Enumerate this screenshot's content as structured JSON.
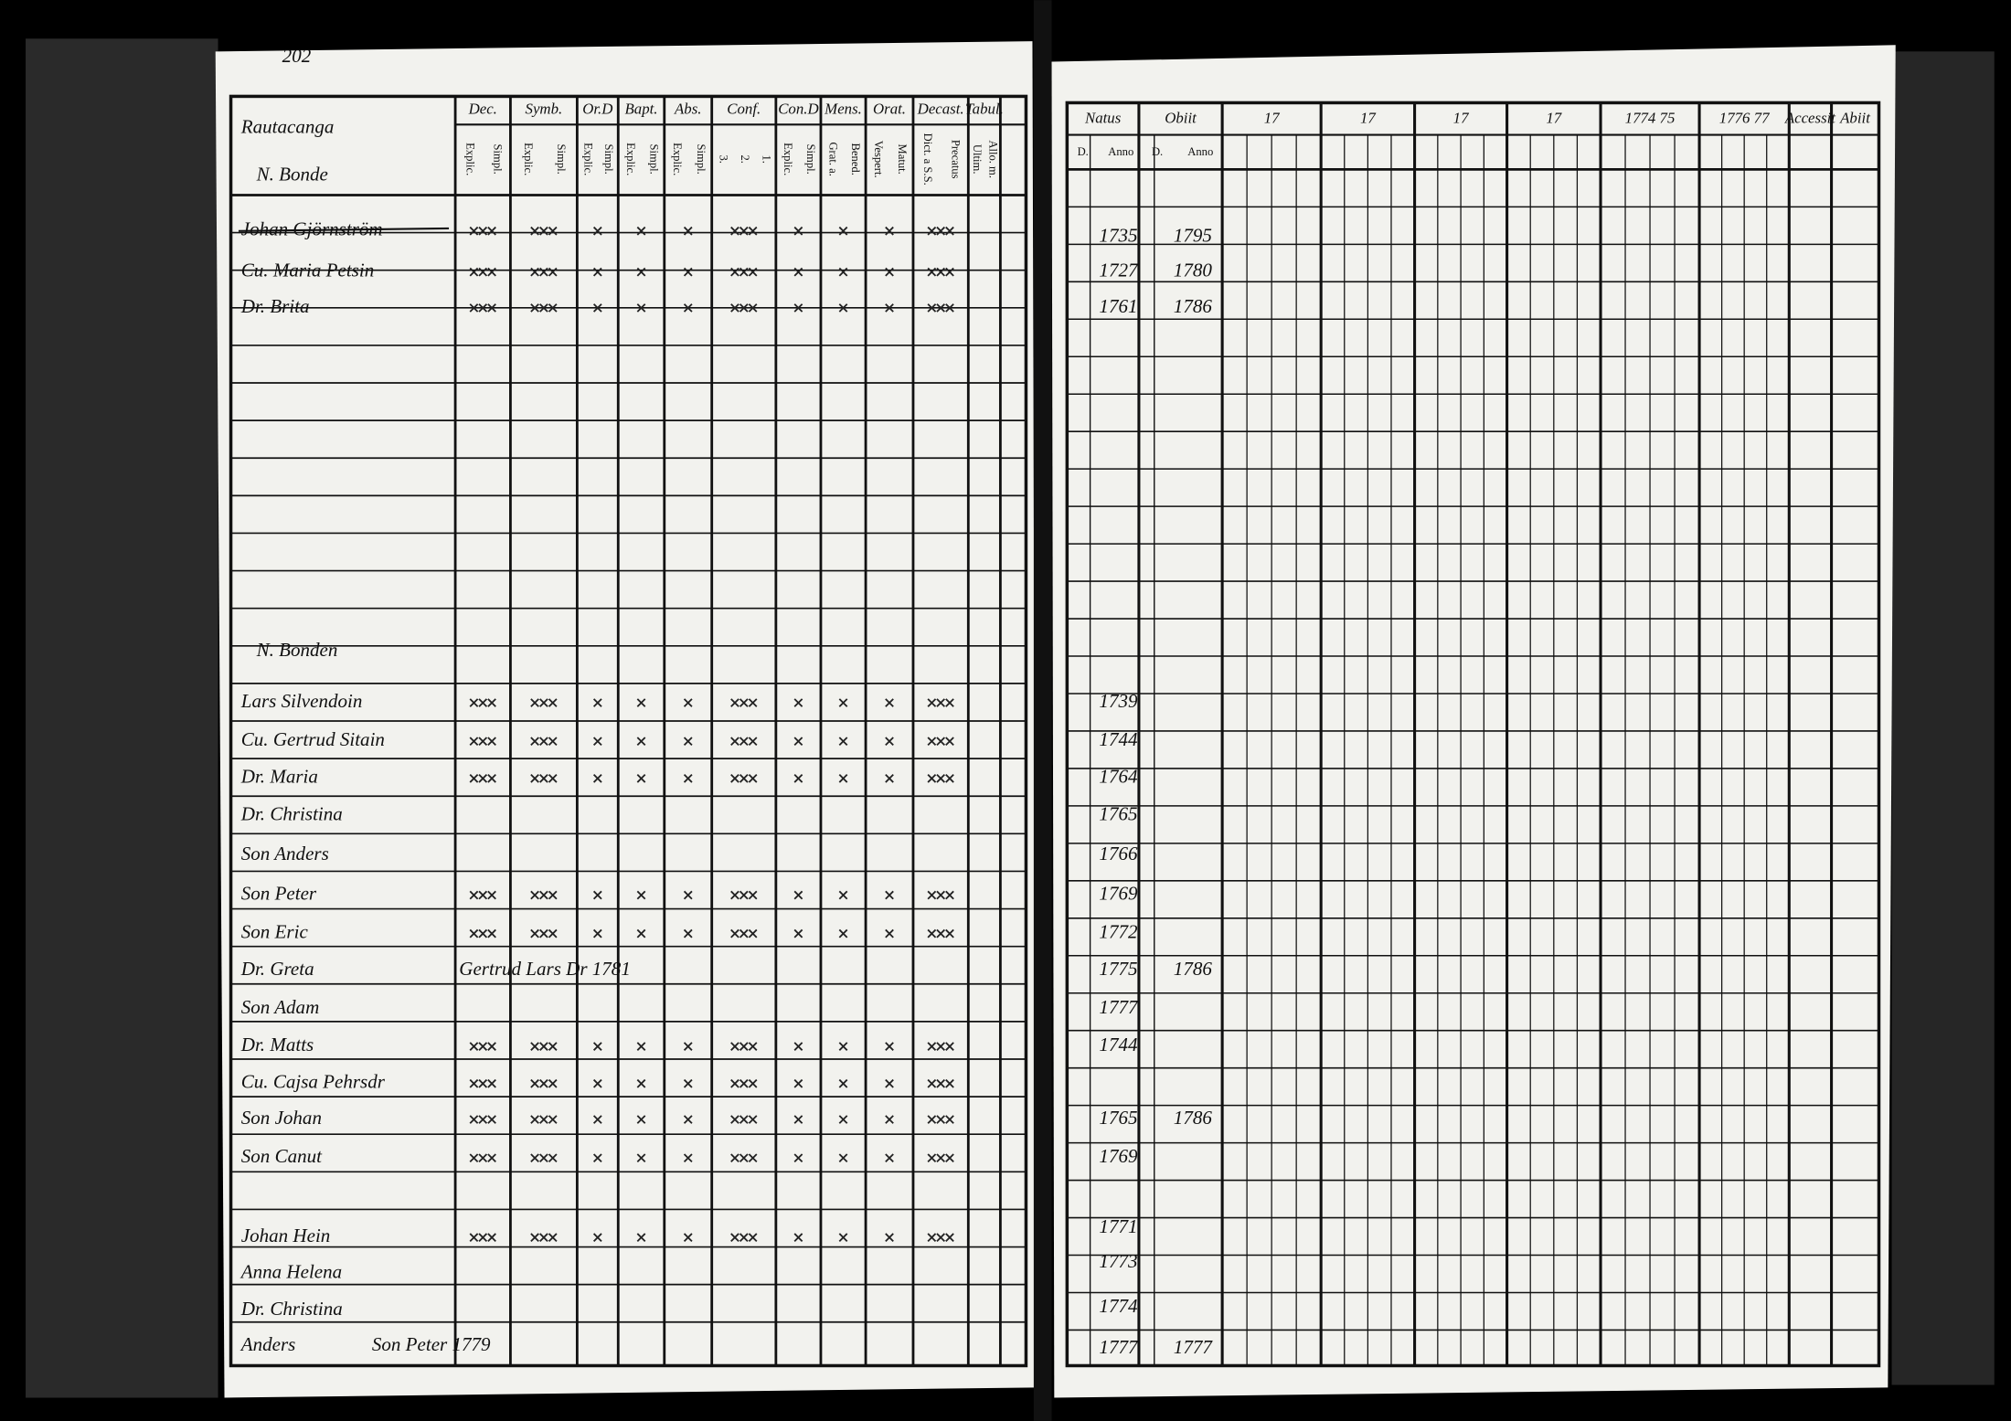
{
  "left": {
    "page_number": "202",
    "parish": "Rautacanga",
    "groups": [
      "N. Bonde",
      "N. Bonden"
    ],
    "columns": [
      {
        "label": "Dec.",
        "sub": [
          "Explic.",
          "Simpl."
        ]
      },
      {
        "label": "Symb.",
        "sub": [
          "Explic.",
          "Simpl."
        ]
      },
      {
        "label": "Or.D",
        "sub": [
          "Explic.",
          "Simpl."
        ]
      },
      {
        "label": "Bapt.",
        "sub": [
          "Explic.",
          "Simpl."
        ]
      },
      {
        "label": "Abs.",
        "sub": [
          "Explic.",
          "Simpl."
        ]
      },
      {
        "label": "Conf.",
        "sub": [
          "3.",
          "2.",
          "1."
        ]
      },
      {
        "label": "Con.D",
        "sub": [
          "Explic.",
          "Simpl."
        ]
      },
      {
        "label": "Mens.",
        "sub": [
          "Grat. a.",
          "Bened."
        ]
      },
      {
        "label": "Orat.",
        "sub": [
          "Vespert.",
          "Matut."
        ]
      },
      {
        "label": "Decast.",
        "sub": [
          "Dict. a S.S.",
          "Precatus"
        ]
      },
      {
        "label": "Tabul.",
        "sub": [
          "Ultim.",
          "Allo. m."
        ]
      }
    ],
    "rows": [
      {
        "name": "Johan Gjörnström"
      },
      {
        "name": "Cu. Maria Petsin"
      },
      {
        "name": "Dr. Brita"
      },
      {
        "name": "Lars Silvendoin"
      },
      {
        "name": "Cu. Gertrud Sitain"
      },
      {
        "name": "Dr. Maria"
      },
      {
        "name": "Dr. Christina"
      },
      {
        "name": "Son Anders"
      },
      {
        "name": "Son Peter"
      },
      {
        "name": "Son Eric"
      },
      {
        "name": "Dr. Greta",
        "note": "Gertrud Lars Dr 1781"
      },
      {
        "name": "Son Adam"
      },
      {
        "name": "Dr. Matts"
      },
      {
        "name": "Cu. Cajsa Pehrsdr"
      },
      {
        "name": "Son Johan"
      },
      {
        "name": "Son Canut"
      },
      {
        "name": "Johan Hein"
      },
      {
        "name": "Anna Helena"
      },
      {
        "name": "Dr. Christina"
      },
      {
        "name": "Anders",
        "note": "Son Peter 1779"
      }
    ]
  },
  "right": {
    "columns": [
      "Natus",
      "Obiit",
      "17",
      "17",
      "17",
      "17",
      "1774 75",
      "1776 77",
      "Accessit",
      "Abiit"
    ],
    "subcolumns": [
      "D.",
      "Anno",
      "D.",
      "Anno"
    ],
    "rows": [
      {
        "born": 1735,
        "died": 1795
      },
      {
        "born": 1727,
        "died": 1780
      },
      {
        "born": 1761,
        "died": 1786
      },
      {
        "born": 1739
      },
      {
        "born": 1744
      },
      {
        "born": 1764
      },
      {
        "born": 1765
      },
      {
        "born": 1766
      },
      {
        "born": 1769
      },
      {
        "born": 1772
      },
      {
        "born": 1775,
        "died": 1786
      },
      {
        "born": 1777
      },
      {
        "born": 1744
      },
      {
        "born": 1765,
        "died": 1786
      },
      {
        "born": 1769
      },
      {
        "born": 1771
      },
      {
        "born": 1773
      },
      {
        "born": 1774
      },
      {
        "born": 1777,
        "died": 1777
      }
    ]
  }
}
